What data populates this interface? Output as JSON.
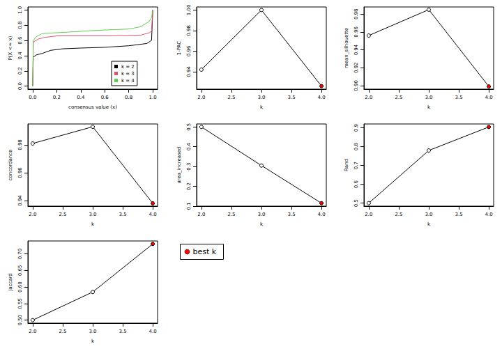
{
  "chart_data": [
    {
      "type": "line",
      "x_label": "consensus value (x)",
      "y_label": "P(X <= x)",
      "xlim": [
        -0.04,
        1.04
      ],
      "xticks": [
        {
          "value": 0,
          "label": "0.0"
        },
        0.2,
        0.4,
        0.6,
        0.8,
        {
          "value": 1,
          "label": "1.0"
        }
      ],
      "ylim": [
        -0.04,
        1.04
      ],
      "yticks": [
        {
          "value": 0,
          "label": "0.0"
        },
        0.2,
        0.4,
        0.6,
        0.8,
        {
          "value": 1,
          "label": "1.0"
        }
      ],
      "grid": false,
      "legend": "bottom-right",
      "series": [
        {
          "name": "k = 2",
          "color": "#000000",
          "x": [
            0,
            0.005,
            0.03,
            0.08,
            0.15,
            0.25,
            0.4,
            0.6,
            0.8,
            0.95,
            0.99,
            1.0
          ],
          "values": [
            0,
            0.38,
            0.41,
            0.43,
            0.47,
            0.49,
            0.5,
            0.51,
            0.53,
            0.56,
            0.6,
            1.0
          ]
        },
        {
          "name": "k = 3",
          "color": "#DF536B",
          "x": [
            0,
            0.005,
            0.05,
            0.1,
            0.2,
            0.6,
            0.9,
            0.97,
            0.99,
            1.0
          ],
          "values": [
            0,
            0.58,
            0.62,
            0.64,
            0.66,
            0.66,
            0.67,
            0.7,
            0.72,
            1.0
          ]
        },
        {
          "name": "k = 4",
          "color": "#61D04F",
          "x": [
            0,
            0.005,
            0.03,
            0.08,
            0.3,
            0.5,
            0.8,
            0.9,
            0.97,
            0.99,
            1.0
          ],
          "values": [
            0,
            0.6,
            0.65,
            0.69,
            0.71,
            0.73,
            0.75,
            0.78,
            0.85,
            0.9,
            1.0
          ]
        }
      ]
    },
    {
      "type": "line",
      "marker": "circle",
      "x_label": "k",
      "y_label": "1-PAC",
      "x": [
        2,
        3,
        4
      ],
      "values": [
        0.942,
        1.0,
        0.926
      ],
      "colors": [
        "#ffffff",
        "#ffffff",
        "#ff0000"
      ],
      "xlim": [
        1.92,
        4.08
      ],
      "xticks": [
        {
          "value": 2,
          "label": "2.0"
        },
        2.5,
        {
          "value": 3,
          "label": "3.0"
        },
        3.5,
        {
          "value": 4,
          "label": "4.0"
        }
      ],
      "ylim": [
        0.923,
        1.003
      ],
      "yticks": [
        0.94,
        0.96,
        0.98,
        {
          "value": 1,
          "label": "1.00"
        }
      ],
      "grid": false
    },
    {
      "type": "line",
      "marker": "circle",
      "x_label": "k",
      "y_label": "mean_silhouette",
      "x": [
        2,
        3,
        4
      ],
      "values": [
        0.956,
        0.985,
        0.899
      ],
      "colors": [
        "#ffffff",
        "#ffffff",
        "#ff0000"
      ],
      "xlim": [
        1.92,
        4.08
      ],
      "xticks": [
        {
          "value": 2,
          "label": "2.0"
        },
        2.5,
        {
          "value": 3,
          "label": "3.0"
        },
        3.5,
        {
          "value": 4,
          "label": "4.0"
        }
      ],
      "ylim": [
        0.896,
        0.988
      ],
      "yticks": [
        {
          "value": 0.9,
          "label": "0.90"
        },
        0.92,
        0.94,
        0.96,
        0.98
      ],
      "grid": false
    },
    {
      "type": "line",
      "marker": "circle",
      "x_label": "k",
      "y_label": "concordance",
      "x": [
        2,
        3,
        4
      ],
      "values": [
        0.981,
        0.993,
        0.938
      ],
      "colors": [
        "#ffffff",
        "#ffffff",
        "#ff0000"
      ],
      "xlim": [
        1.92,
        4.08
      ],
      "xticks": [
        {
          "value": 2,
          "label": "2.0"
        },
        2.5,
        {
          "value": 3,
          "label": "3.0"
        },
        3.5,
        {
          "value": 4,
          "label": "4.0"
        }
      ],
      "ylim": [
        0.936,
        0.995
      ],
      "yticks": [
        0.94,
        0.96,
        0.98
      ],
      "grid": false
    },
    {
      "type": "line",
      "marker": "circle",
      "x_label": "k",
      "y_label": "area_increased",
      "x": [
        2,
        3,
        4
      ],
      "values": [
        0.5,
        0.305,
        0.115
      ],
      "colors": [
        "#ffffff",
        "#ffffff",
        "#ff0000"
      ],
      "xlim": [
        1.92,
        4.08
      ],
      "xticks": [
        {
          "value": 2,
          "label": "2.0"
        },
        2.5,
        {
          "value": 3,
          "label": "3.0"
        },
        3.5,
        {
          "value": 4,
          "label": "4.0"
        }
      ],
      "ylim": [
        0.1,
        0.515
      ],
      "yticks": [
        0.1,
        0.2,
        0.3,
        0.4,
        0.5
      ],
      "grid": false
    },
    {
      "type": "line",
      "marker": "circle",
      "x_label": "k",
      "y_label": "Rand",
      "x": [
        2,
        3,
        4
      ],
      "values": [
        0.5,
        0.78,
        0.905
      ],
      "colors": [
        "#ffffff",
        "#ffffff",
        "#ff0000"
      ],
      "xlim": [
        1.92,
        4.08
      ],
      "xticks": [
        {
          "value": 2,
          "label": "2.0"
        },
        2.5,
        {
          "value": 3,
          "label": "3.0"
        },
        3.5,
        {
          "value": 4,
          "label": "4.0"
        }
      ],
      "ylim": [
        0.484,
        0.921
      ],
      "yticks": [
        0.5,
        0.6,
        0.7,
        0.8,
        0.9
      ],
      "grid": false
    },
    {
      "type": "line",
      "marker": "circle",
      "x_label": "k",
      "y_label": "Jaccard",
      "x": [
        2,
        3,
        4
      ],
      "values": [
        0.5,
        0.585,
        0.73
      ],
      "colors": [
        "#ffffff",
        "#ffffff",
        "#ff0000"
      ],
      "xlim": [
        1.92,
        4.08
      ],
      "xticks": [
        {
          "value": 2,
          "label": "2.0"
        },
        2.5,
        {
          "value": 3,
          "label": "3.0"
        },
        3.5,
        {
          "value": 4,
          "label": "4.0"
        }
      ],
      "ylim": [
        0.491,
        0.739
      ],
      "yticks": [
        {
          "value": 0.5,
          "label": "0.50"
        },
        0.55,
        {
          "value": 0.6,
          "label": "0.60"
        },
        0.65,
        {
          "value": 0.7,
          "label": "0.70"
        }
      ],
      "grid": false
    }
  ],
  "legend_box": {
    "text": "best k",
    "color": "#ff0000"
  }
}
